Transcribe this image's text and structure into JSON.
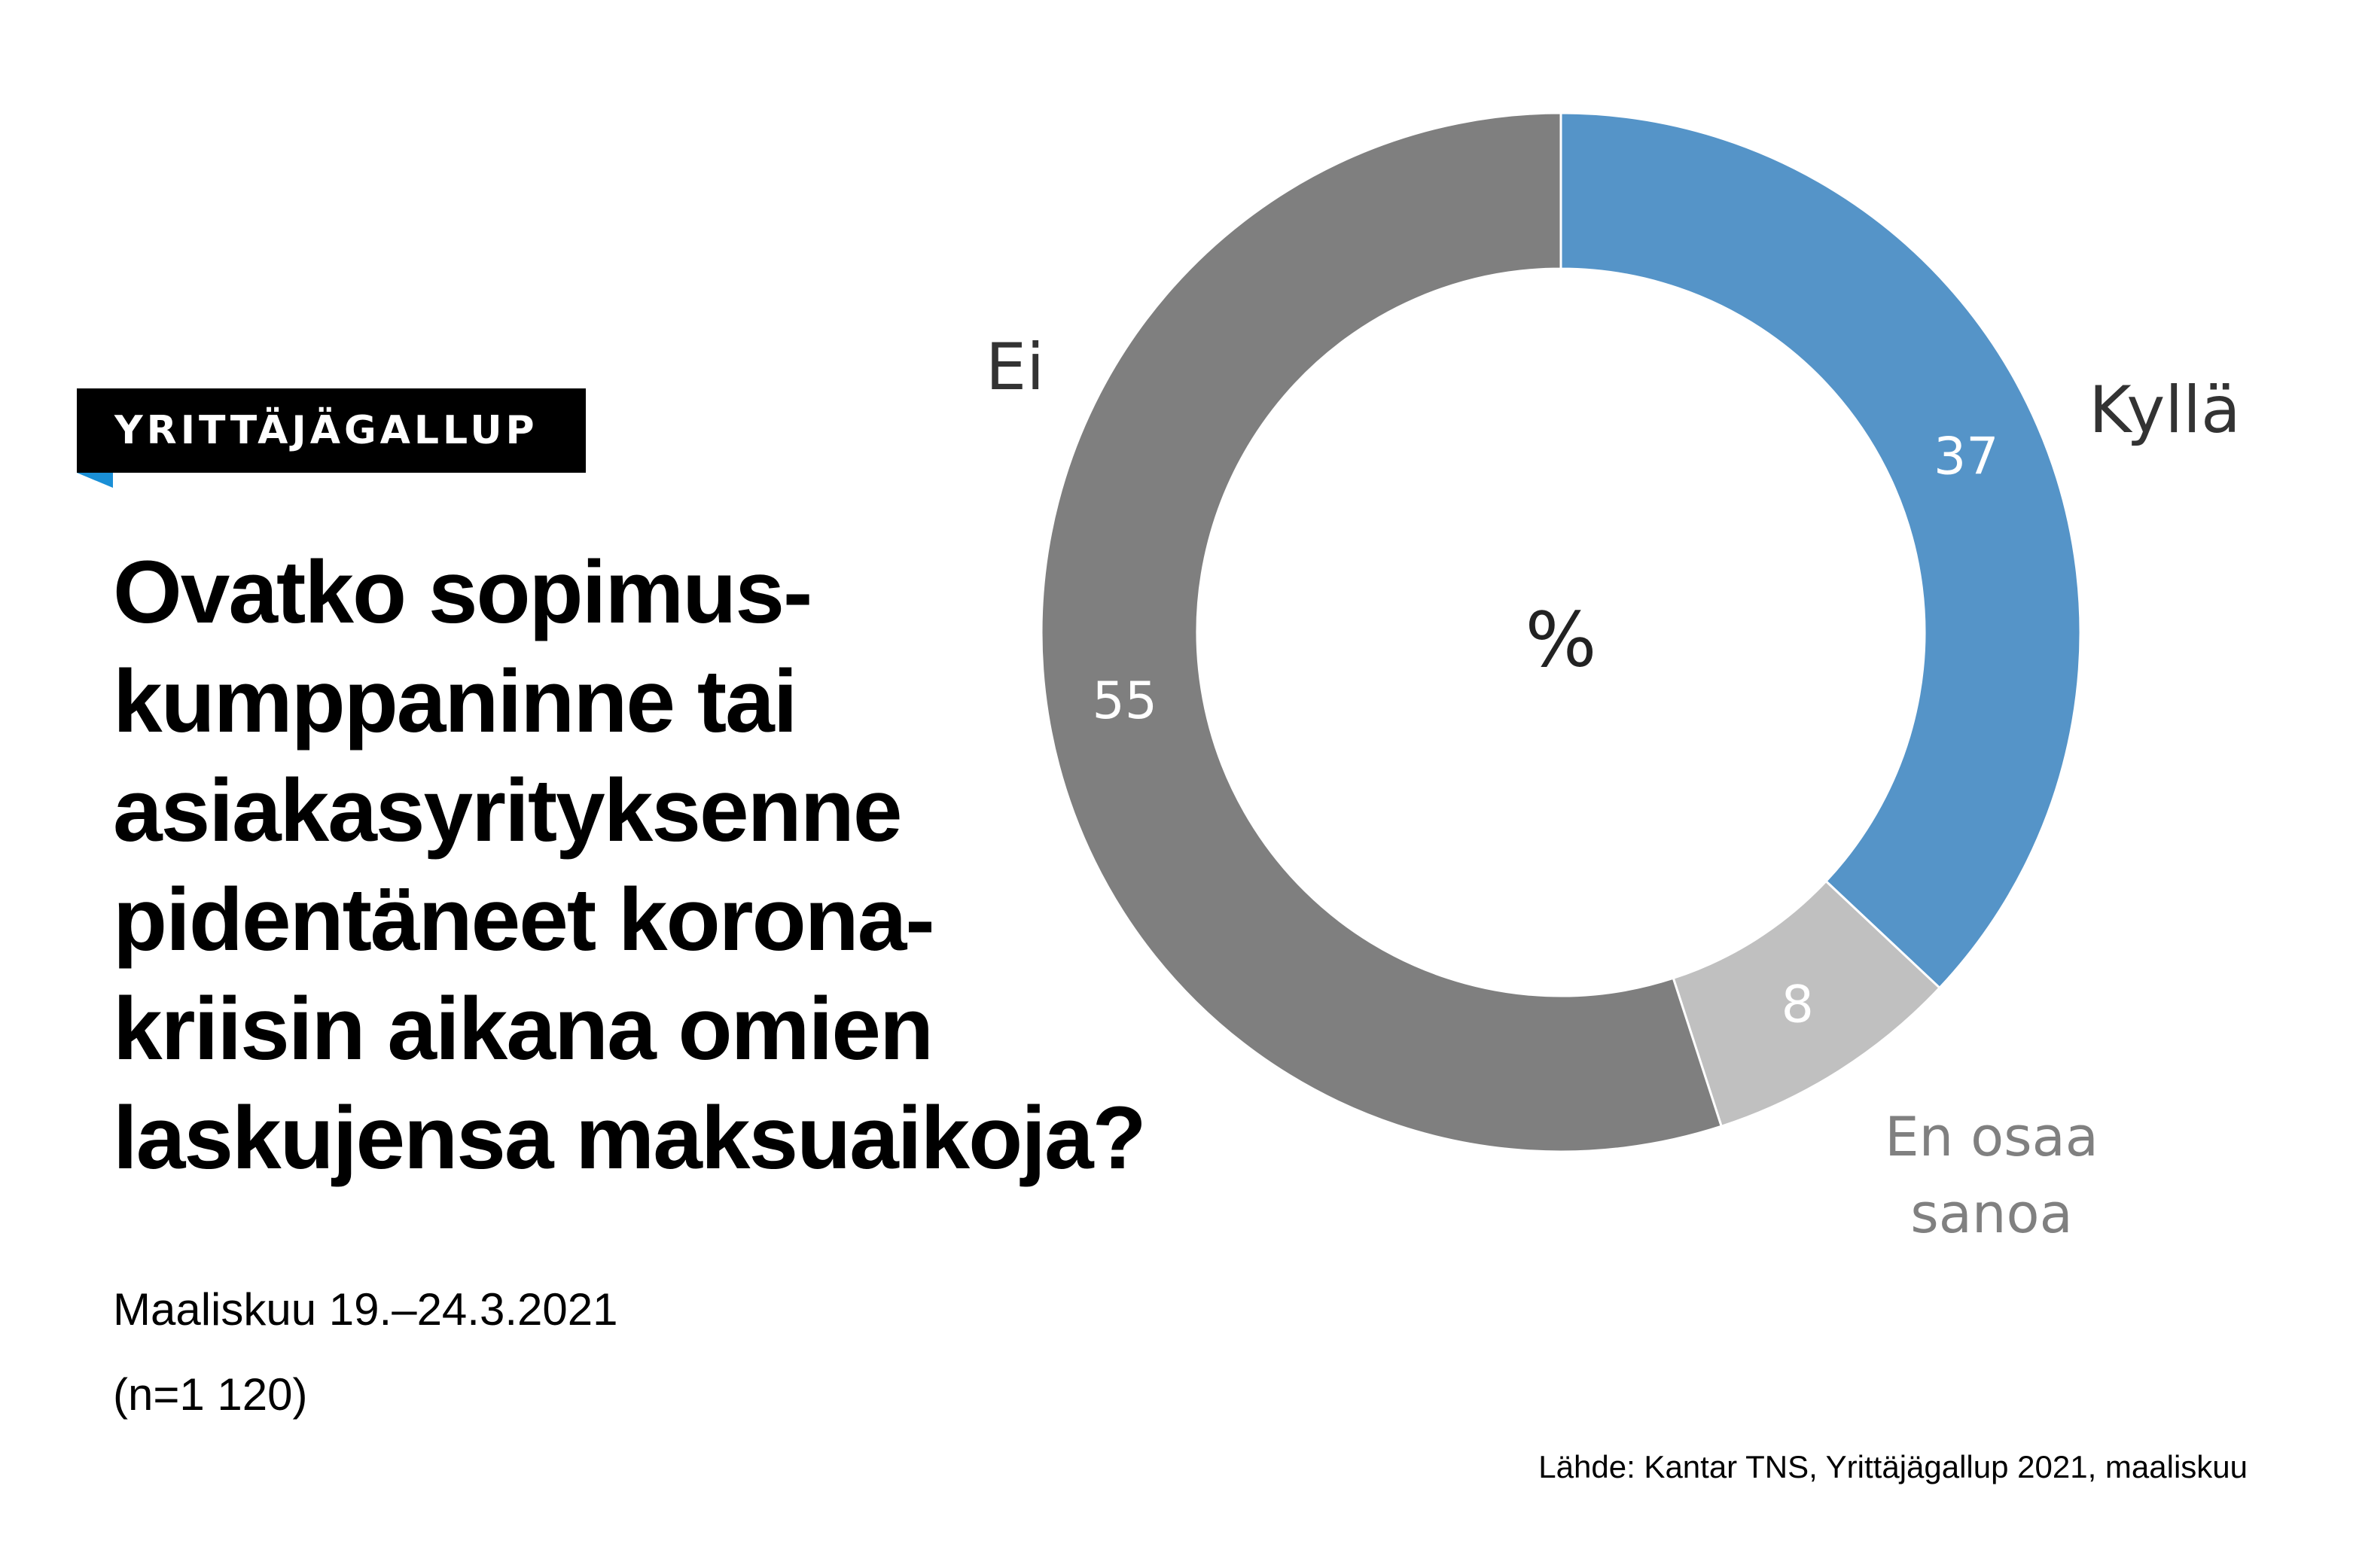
{
  "badge": {
    "label": "YRITTÄJÄGALLUP",
    "accent": "#1a8fd6"
  },
  "title_lines": [
    "Ovatko sopimus-",
    "kumppaninne tai",
    "asiakasyrityksenne",
    "pidentäneet korona-",
    "kriisin aikana omien",
    "laskujensa maksuaikoja?"
  ],
  "period": "Maaliskuu 19.–24.3.2021",
  "sample": "(n=1 120)",
  "source": "Lähde: Kantar TNS, Yrittäjägallup 2021, maaliskuu",
  "chart_data": {
    "type": "pie",
    "style": "donut",
    "center_label": "%",
    "slices": [
      {
        "label": "Kyllä",
        "value": 37,
        "color": "#5594c8",
        "label_color": "#333333"
      },
      {
        "label": "En osaa sanoa",
        "label_lines": [
          "En osaa",
          "sanoa"
        ],
        "value": 8,
        "color": "#c0c0c0",
        "label_color": "#808080"
      },
      {
        "label": "Ei",
        "value": 55,
        "color": "#7f7f7f",
        "label_color": "#333333"
      }
    ]
  }
}
